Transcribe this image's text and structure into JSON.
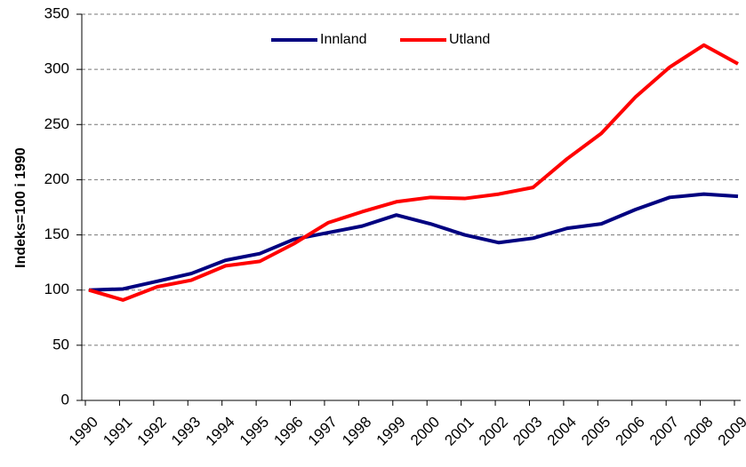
{
  "chart_data": {
    "type": "line",
    "y_label": "Indeks=100 i 1990",
    "categories": [
      "1990",
      "1991",
      "1992",
      "1993",
      "1994",
      "1995",
      "1996",
      "1997",
      "1998",
      "1999",
      "2000",
      "2001",
      "2002",
      "2003",
      "2004",
      "2005",
      "2006",
      "2007",
      "2008",
      "2009"
    ],
    "series": [
      {
        "name": "Innland",
        "color": "#000080",
        "values": [
          100,
          101,
          108,
          115,
          127,
          133,
          146,
          152,
          158,
          168,
          160,
          150,
          143,
          147,
          156,
          160,
          173,
          184,
          187,
          185
        ]
      },
      {
        "name": "Utland",
        "color": "#ff0000",
        "values": [
          100,
          91,
          103,
          109,
          122,
          126,
          142,
          161,
          171,
          180,
          184,
          183,
          187,
          193,
          219,
          242,
          275,
          302,
          322,
          305
        ]
      }
    ],
    "ylim": [
      0,
      350
    ],
    "yticks": [
      0,
      50,
      100,
      150,
      200,
      250,
      300,
      350
    ],
    "grid": true,
    "legend": "top"
  }
}
